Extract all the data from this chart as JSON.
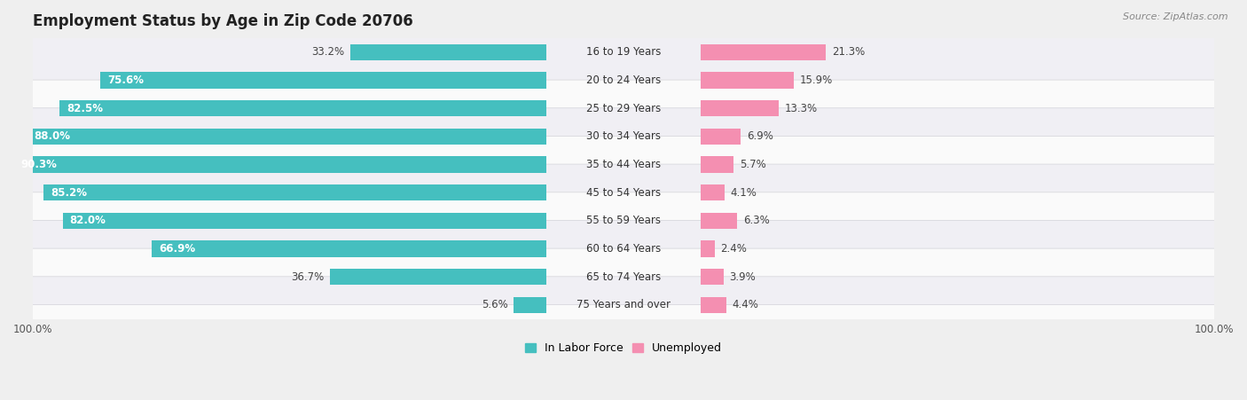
{
  "title": "Employment Status by Age in Zip Code 20706",
  "source": "Source: ZipAtlas.com",
  "categories": [
    "16 to 19 Years",
    "20 to 24 Years",
    "25 to 29 Years",
    "30 to 34 Years",
    "35 to 44 Years",
    "45 to 54 Years",
    "55 to 59 Years",
    "60 to 64 Years",
    "65 to 74 Years",
    "75 Years and over"
  ],
  "labor_force": [
    33.2,
    75.6,
    82.5,
    88.0,
    90.3,
    85.2,
    82.0,
    66.9,
    36.7,
    5.6
  ],
  "unemployed": [
    21.3,
    15.9,
    13.3,
    6.9,
    5.7,
    4.1,
    6.3,
    2.4,
    3.9,
    4.4
  ],
  "labor_color": "#45bfbf",
  "unemployed_color": "#f48fb1",
  "bg_color": "#efefef",
  "row_bg_light": "#fafafa",
  "row_bg_dark": "#f0eff4",
  "bar_height": 0.58,
  "max_val": 100.0,
  "label_zone_half": 13,
  "title_fontsize": 12,
  "bar_label_fontsize": 8.5,
  "cat_label_fontsize": 8.5,
  "tick_fontsize": 8.5,
  "legend_fontsize": 9,
  "source_fontsize": 8
}
